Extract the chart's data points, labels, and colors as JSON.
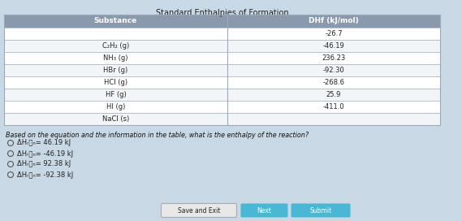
{
  "title": "Standard Enthalpies of Formation",
  "col_headers": [
    "Substance",
    "DHf (kJ/mol)"
  ],
  "rows": [
    [
      "",
      "-26.7"
    ],
    [
      "C₂H₂ (g)",
      "-46.19"
    ],
    [
      "NH₃ (g)",
      "236.23"
    ],
    [
      "HBr (g)",
      "-92.30"
    ],
    [
      "HCl (g)",
      "-268.6"
    ],
    [
      "HF (g)",
      "25.9"
    ],
    [
      "HI (g)",
      "-411.0"
    ],
    [
      "NaCl (s)",
      ""
    ]
  ],
  "question": "Based on the equation and the information in the table, what is the enthalpy of the reaction?",
  "options_text": [
    "ΔHᵣᶋₙ= 46.19 kJ",
    "ΔHᵣᶋₙ= -46.19 kJ",
    "ΔHᵣᶋₙ= 92.38 kJ",
    "ΔHᵣᶋₙ= -92.38 kJ"
  ],
  "button_save": "Save and Exit",
  "button_next": "Next",
  "button_submit": "Submit",
  "bg_color": "#c8d8e4",
  "table_header_bg": "#8a9aac",
  "table_row_bg_light": "#f2f5f8",
  "table_row_bg_white": "#ffffff",
  "table_border_color": "#9aaabb",
  "button_save_bg": "#e8e8e8",
  "button_save_edge": "#aaaaaa",
  "button_cyan_bg": "#4ab8d4",
  "text_dark": "#222222",
  "text_white": "#ffffff",
  "text_question": "#111111"
}
